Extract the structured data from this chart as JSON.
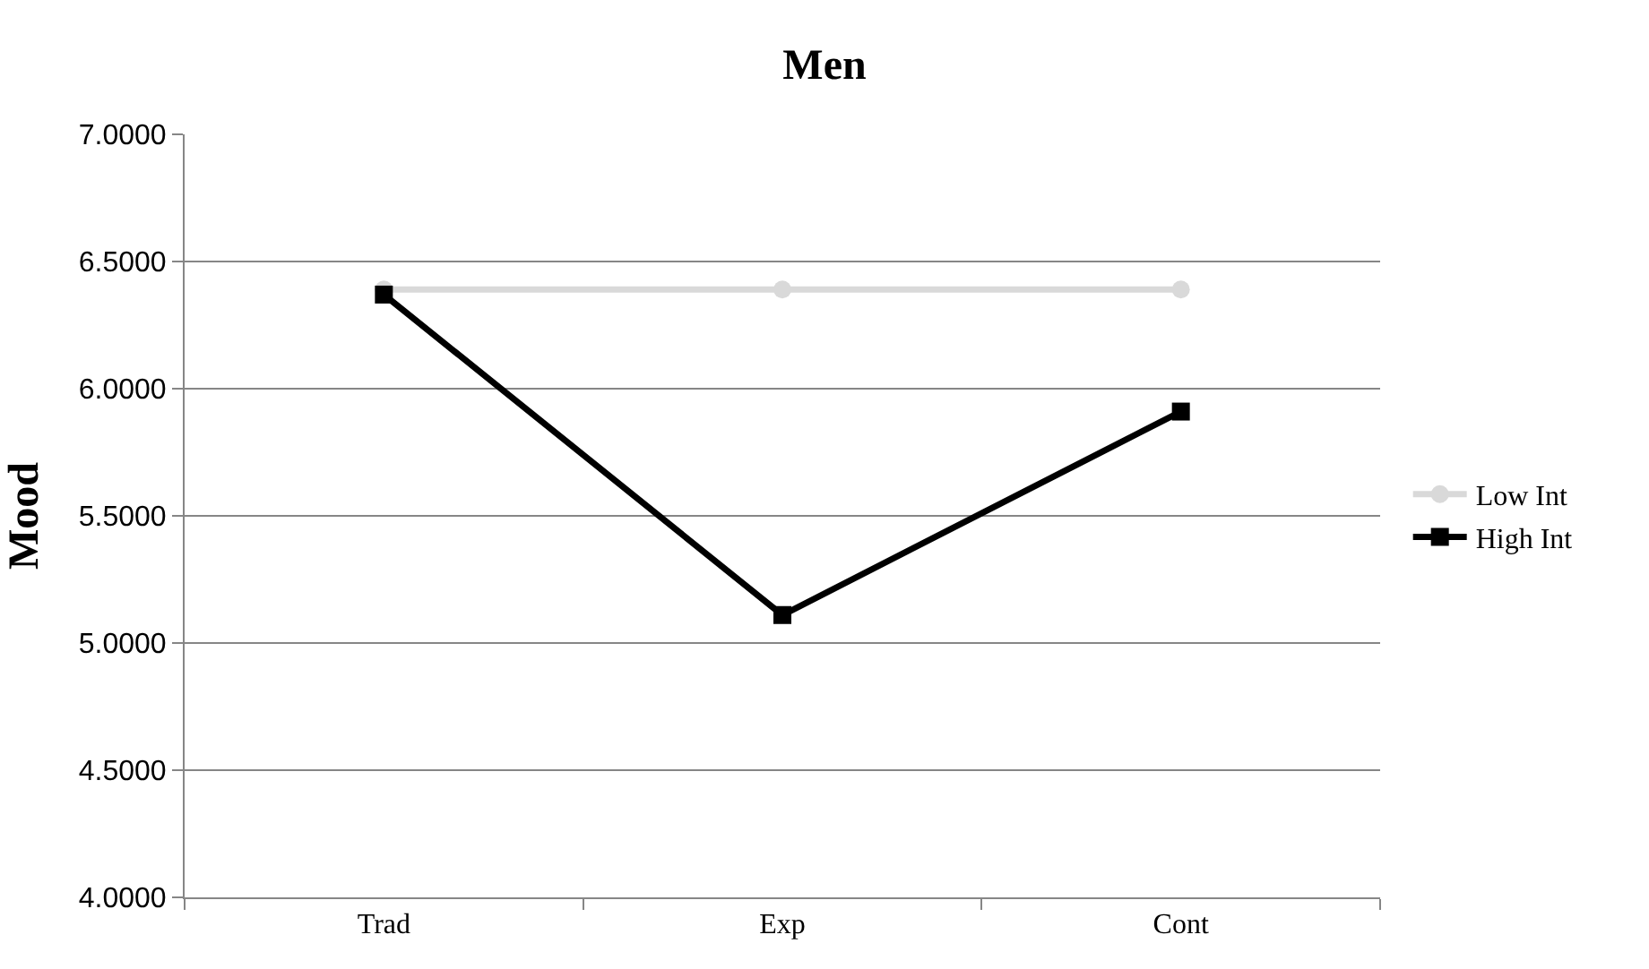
{
  "chart_data": {
    "type": "line",
    "title": "Men",
    "ylabel": "Mood",
    "categories": [
      "Trad",
      "Exp",
      "Cont"
    ],
    "series": [
      {
        "name": "Low Int",
        "color": "#d9d9d9",
        "values": [
          6.39,
          6.39,
          6.39
        ],
        "marker": "circle"
      },
      {
        "name": "High Int",
        "color": "#000000",
        "values": [
          6.37,
          5.11,
          5.91
        ],
        "marker": "square"
      }
    ],
    "ylim": [
      4.0,
      7.0
    ],
    "yticks": [
      {
        "value": 4.0,
        "label": "4.0000"
      },
      {
        "value": 4.5,
        "label": "4.5000"
      },
      {
        "value": 5.0,
        "label": "5.0000"
      },
      {
        "value": 5.5,
        "label": "5.5000"
      },
      {
        "value": 6.0,
        "label": "6.0000"
      },
      {
        "value": 6.5,
        "label": "6.5000"
      },
      {
        "value": 7.0,
        "label": "7.0000"
      }
    ],
    "grid": "y",
    "legend": "right",
    "line_style": "solid"
  }
}
